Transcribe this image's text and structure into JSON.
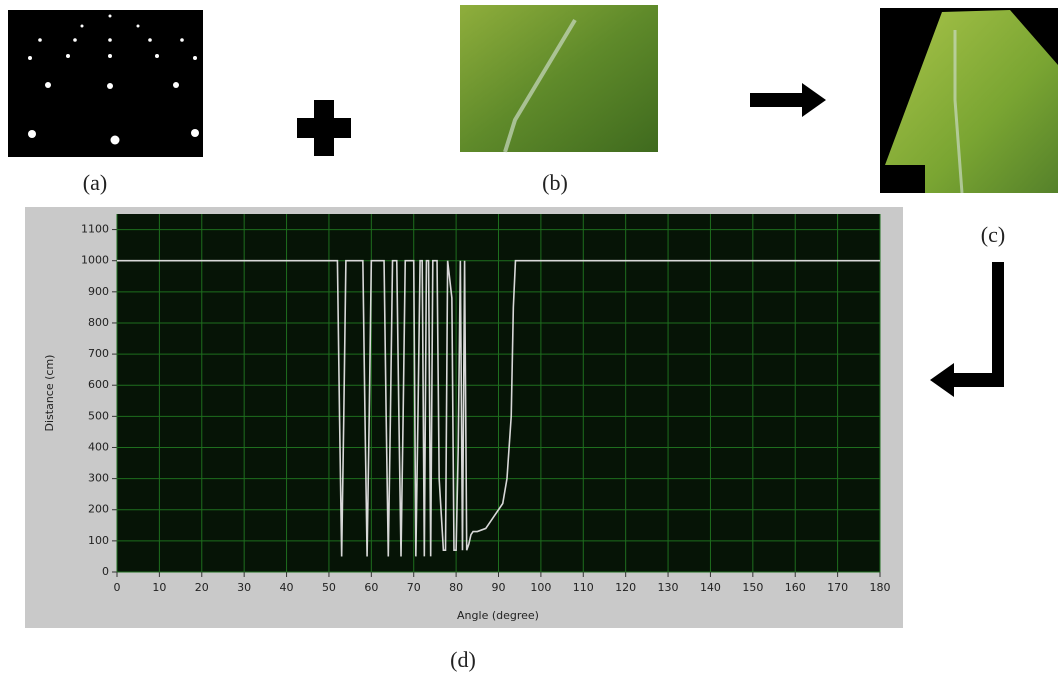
{
  "panel_labels": [
    "(a)",
    "(b)",
    "(c)",
    "(d)"
  ],
  "chart_data": {
    "type": "line",
    "x_label": "Angle (degree)",
    "y_label": "Distance (cm)",
    "x": [
      0,
      52,
      52.5,
      53,
      53.5,
      54,
      58,
      58.5,
      59,
      59.5,
      60,
      63,
      63.5,
      64,
      64.5,
      65,
      66,
      66.5,
      67,
      67.5,
      68,
      70,
      70.5,
      71,
      71.5,
      72,
      72.5,
      73,
      73.5,
      74,
      74.5,
      75,
      75.5,
      76,
      77,
      77.5,
      78,
      79,
      79.5,
      80,
      80.5,
      81,
      81.5,
      82,
      82.5,
      83,
      83.5,
      84,
      85,
      87,
      88,
      89,
      90,
      91,
      92,
      93,
      93.5,
      94,
      95,
      180
    ],
    "values": [
      1000,
      1000,
      500,
      50,
      500,
      1000,
      1000,
      500,
      50,
      500,
      1000,
      1000,
      500,
      50,
      500,
      1000,
      1000,
      500,
      50,
      500,
      1000,
      1000,
      50,
      500,
      1000,
      1000,
      50,
      1000,
      1000,
      50,
      1000,
      1000,
      1000,
      300,
      70,
      70,
      1000,
      880,
      70,
      70,
      400,
      1000,
      70,
      1000,
      70,
      90,
      120,
      130,
      130,
      140,
      160,
      180,
      200,
      220,
      300,
      500,
      850,
      1000,
      1000,
      1000
    ],
    "color": "#d8d8d8",
    "xlim": [
      0,
      180
    ],
    "ylim": [
      0,
      1150
    ],
    "xticks": [
      0,
      10,
      20,
      30,
      40,
      50,
      60,
      70,
      80,
      90,
      100,
      110,
      120,
      130,
      140,
      150,
      160,
      170,
      180
    ],
    "yticks": [
      0,
      100,
      200,
      300,
      400,
      500,
      600,
      700,
      800,
      900,
      1000,
      1100
    ],
    "grid": true
  }
}
